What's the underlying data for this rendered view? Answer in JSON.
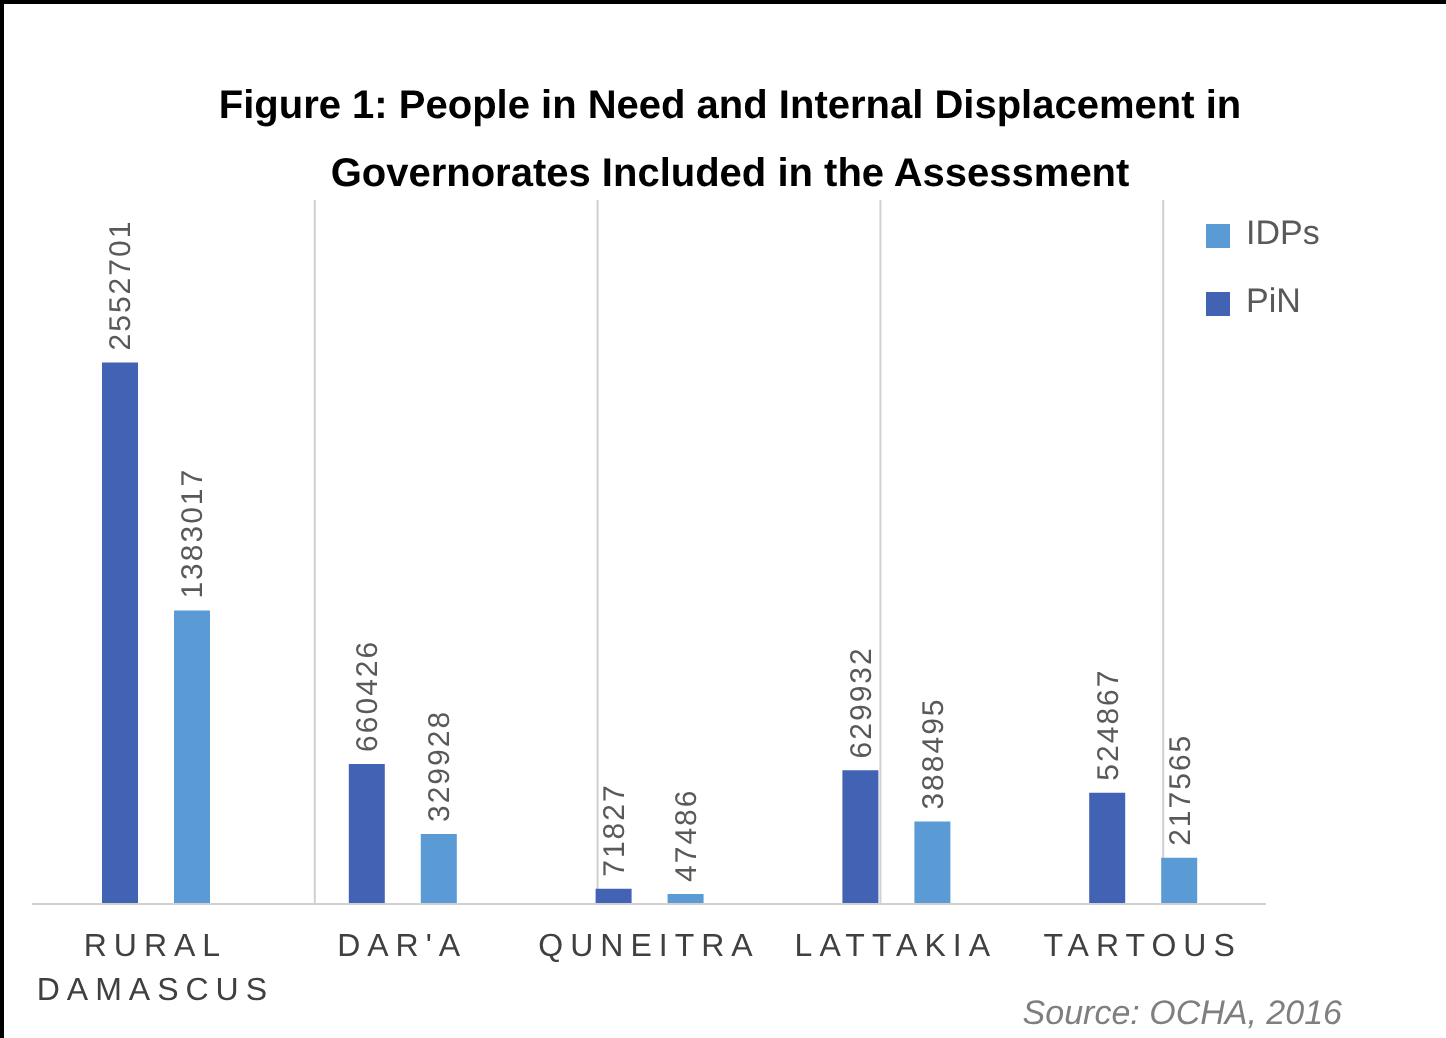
{
  "chart_data": {
    "type": "bar",
    "title": "Figure 1: People in Need and Internal Displacement in Governorates Included in the Assessment",
    "categories": [
      "RURAL DAMASCUS",
      "DAR'A",
      "QUNEITRA",
      "LATTAKIA",
      "TARTOUS"
    ],
    "series": [
      {
        "name": "PiN",
        "color": "#4262b3",
        "values": [
          2552701,
          660426,
          71827,
          629932,
          524867
        ]
      },
      {
        "name": "IDPs",
        "color": "#5b9bd5",
        "values": [
          1383017,
          329928,
          47486,
          388495,
          217565
        ]
      }
    ],
    "data_labels": true,
    "grid": "x",
    "legend": "top right",
    "annotations": [
      "Source: OCHA, 2016"
    ]
  }
}
